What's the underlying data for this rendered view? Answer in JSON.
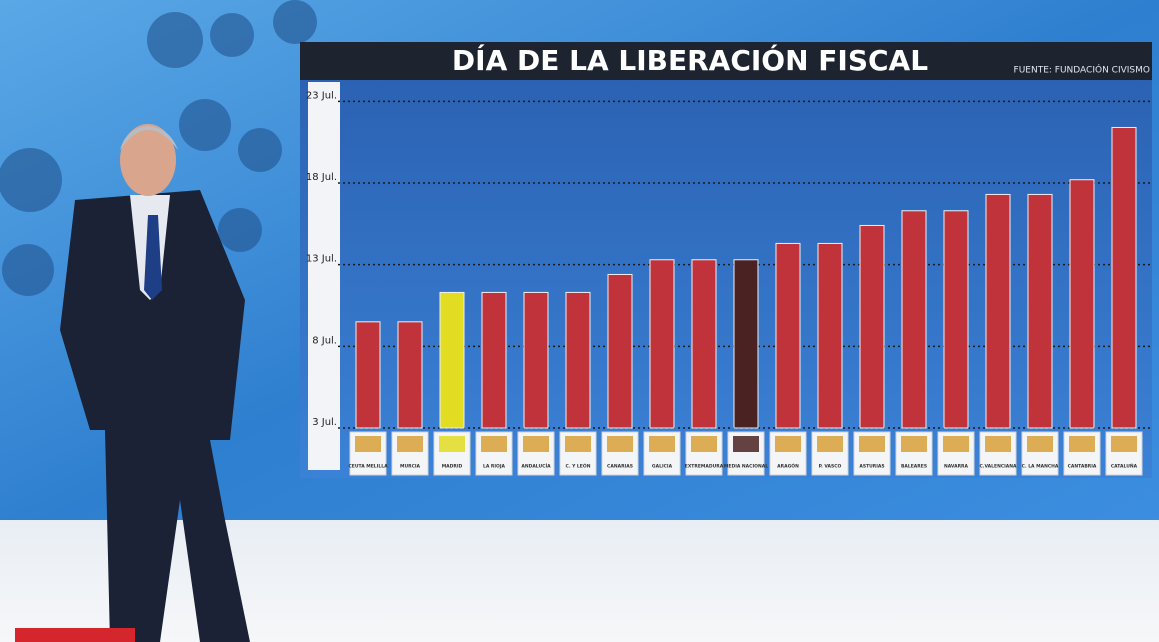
{
  "chart_data": {
    "type": "bar",
    "title": "DÍA DE  LA LIBERACIÓN FISCAL",
    "source": "FUENTE: FUNDACIÓN CIVISMO",
    "categories": [
      "CEUTA MELILLA",
      "MURCIA",
      "MADRID",
      "LA RIOJA",
      "ANDALUCÍA",
      "C. Y LEÓN",
      "CANARIAS",
      "GALICIA",
      "EXTREMADURA",
      "MEDIA NACIONAL",
      "ARAGÓN",
      "P. VASCO",
      "ASTURIAS",
      "BALEARES",
      "NAVARRA",
      "C.VALENCIANA",
      "C. LA MANCHA",
      "CANTABRIA",
      "CATALUÑA"
    ],
    "values": [
      9.5,
      9.5,
      11.3,
      11.3,
      11.3,
      11.3,
      12.4,
      13.3,
      13.3,
      13.3,
      14.3,
      14.3,
      15.4,
      16.3,
      16.3,
      17.3,
      17.3,
      18.2,
      21.4
    ],
    "colors": [
      "#c1333b",
      "#c1333b",
      "#e2dc22",
      "#c1333b",
      "#c1333b",
      "#c1333b",
      "#c1333b",
      "#c1333b",
      "#c1333b",
      "#4a2222",
      "#c1333b",
      "#c1333b",
      "#c1333b",
      "#c1333b",
      "#c1333b",
      "#c1333b",
      "#c1333b",
      "#c1333b",
      "#c1333b"
    ],
    "ylim": [
      3,
      24
    ],
    "yticks": [
      {
        "value": 3,
        "label": "3 Jul."
      },
      {
        "value": 8,
        "label": "8 Jul."
      },
      {
        "value": 13,
        "label": "13 Jul."
      },
      {
        "value": 18,
        "label": "18 Jul."
      },
      {
        "value": 23,
        "label": "23 Jul."
      }
    ],
    "grid": true
  }
}
